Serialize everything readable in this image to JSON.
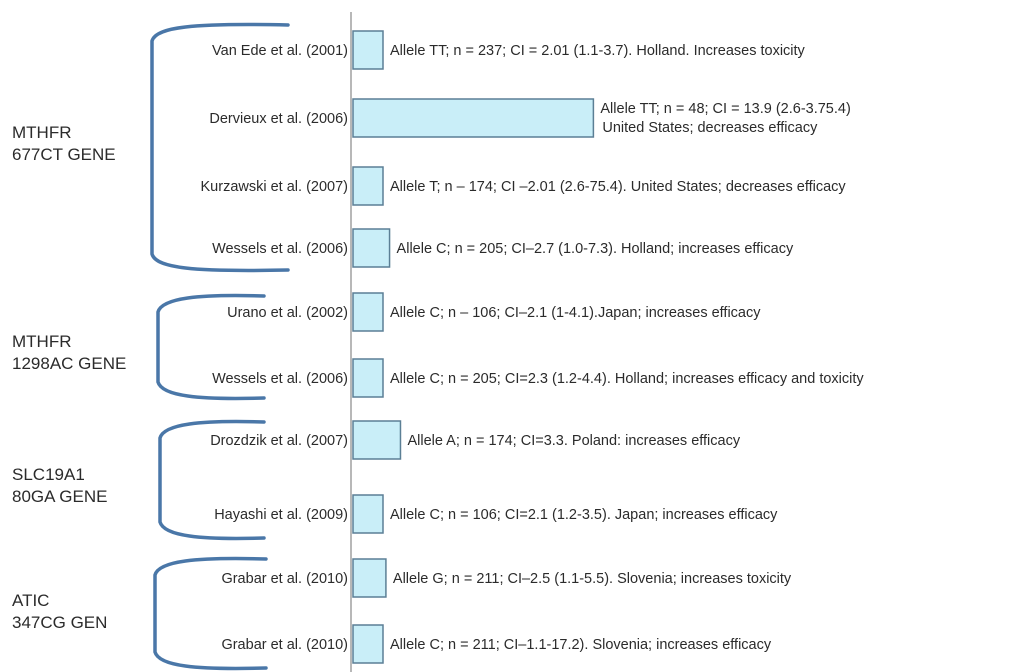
{
  "chart_data": {
    "type": "bar",
    "orientation": "horizontal",
    "bar_color": "#c9eef8",
    "bar_stroke": "#5b7f95",
    "axis_color": "#b8b8b8",
    "bracket_color": "#4a77a8",
    "groups": [
      {
        "label_lines": [
          "MTHFR",
          "677CT GENE"
        ],
        "studies": [
          {
            "name": "Van Ede et al. (2001)",
            "value": 2.01,
            "annotation": [
              "Allele TT; n = 237; CI = 2.01 (1.1-3.7). Holland. Increases toxicity"
            ]
          },
          {
            "name": "Dervieux et al. (2006)",
            "value": 13.9,
            "annotation": [
              "Allele TT; n = 48; CI = 13.9 (2.6-3.75.4)",
              "United States; decreases efficacy"
            ]
          },
          {
            "name": "Kurzawski et al. (2007)",
            "value": 2.01,
            "annotation": [
              "Allele T; n – 174; CI –2.01 (2.6-75.4). United States; decreases efficacy"
            ]
          },
          {
            "name": "Wessels et al. (2006)",
            "value": 2.7,
            "annotation": [
              "Allele C; n = 205; CI–2.7 (1.0-7.3). Holland; increases efficacy"
            ]
          }
        ]
      },
      {
        "label_lines": [
          "MTHFR",
          "1298AC GENE"
        ],
        "studies": [
          {
            "name": "Urano et al. (2002)",
            "value": 2.1,
            "annotation": [
              "Allele C; n – 106; CI–2.1 (1-4.1).Japan; increases efficacy"
            ]
          },
          {
            "name": "Wessels et al. (2006)",
            "value": 2.3,
            "annotation": [
              "Allele C; n = 205; CI=2.3 (1.2-4.4). Holland; increases efficacy and toxicity"
            ]
          }
        ]
      },
      {
        "label_lines": [
          "SLC19A1",
          "80GA GENE"
        ],
        "studies": [
          {
            "name": "Drozdzik et al. (2007)",
            "value": 3.3,
            "annotation": [
              "Allele A; n = 174; CI=3.3. Poland: increases efficacy"
            ]
          },
          {
            "name": "Hayashi et al. (2009)",
            "value": 2.1,
            "annotation": [
              "Allele C; n = 106; CI=2.1 (1.2-3.5). Japan; increases efficacy"
            ]
          }
        ]
      },
      {
        "label_lines": [
          "ATIC",
          "347CG GEN"
        ],
        "studies": [
          {
            "name": "Grabar et al. (2010)",
            "value": 2.5,
            "annotation": [
              "Allele G; n = 211; CI–2.5 (1.1-5.5). Slovenia; increases toxicity"
            ]
          },
          {
            "name": "Grabar et al. (2010)",
            "value": 1.1,
            "annotation": [
              "Allele C; n = 211; CI–1.1-17.2). Slovenia; increases efficacy"
            ]
          }
        ]
      }
    ]
  }
}
